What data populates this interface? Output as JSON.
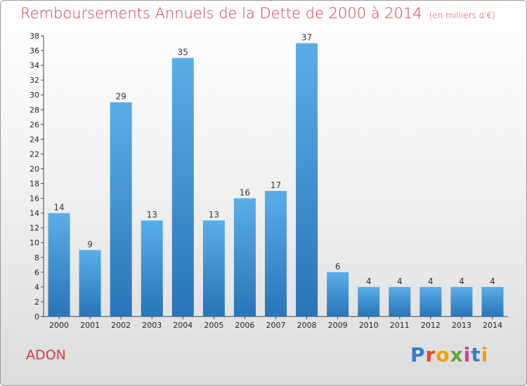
{
  "title": "Remboursements Annuels de la Dette de 2000 à 2014",
  "unit": "(en milliers d'€)",
  "commune": "ADON",
  "logo": {
    "p1": "P",
    "p2": "r",
    "p3": "o",
    "p4": "x",
    "p5": "i",
    "p6": "t",
    "p7": "i"
  },
  "colors": {
    "title": "#d33a4a",
    "bar_top": "#5aaee8",
    "bar_bottom": "#2874b8"
  },
  "chart_data": {
    "type": "bar",
    "title": "Remboursements Annuels de la Dette de 2000 à 2014",
    "xlabel": "",
    "ylabel": "",
    "categories": [
      "2000",
      "2001",
      "2002",
      "2003",
      "2004",
      "2005",
      "2006",
      "2007",
      "2008",
      "2009",
      "2010",
      "2011",
      "2012",
      "2013",
      "2014"
    ],
    "values": [
      14,
      9,
      29,
      13,
      35,
      13,
      16,
      17,
      37,
      6,
      4,
      4,
      4,
      4,
      4
    ],
    "ylim": [
      0,
      38
    ],
    "ytick_step": 2,
    "grid": false,
    "legend": "none"
  }
}
